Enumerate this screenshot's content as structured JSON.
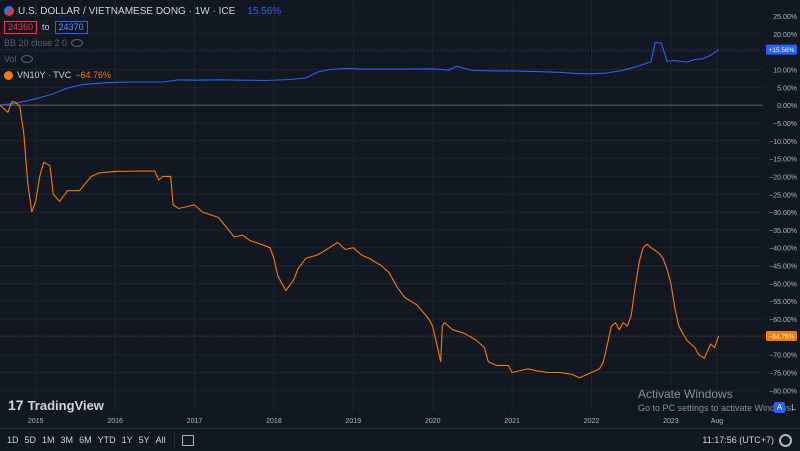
{
  "legend": {
    "title": "U.S. DOLLAR / VIETNAMESE DONG · 1W · ICE",
    "change": "15.56%",
    "low": "24360",
    "to": "to",
    "high": "24370",
    "bb": "BB 20 close 2 0",
    "vol": "Vol",
    "series2_name": "VN10Y · TVC",
    "series2_change": "−64.76%"
  },
  "colors": {
    "usdvnd": "#2962ff",
    "vn10y": "#f57c00",
    "background": "#131722",
    "grid": "#1e222d",
    "zero_line": "#787b86",
    "axis_text": "#b2b5be"
  },
  "chart_data": {
    "type": "line",
    "xlabel": "",
    "ylabel": "",
    "ylim": [
      -82,
      27
    ],
    "x_ticks": [
      "2015",
      "2016",
      "2017",
      "2018",
      "2019",
      "2020",
      "2021",
      "2022",
      "2023",
      "Aug"
    ],
    "x_tick_years": [
      2015.0,
      2016.0,
      2017.0,
      2018.0,
      2019.0,
      2020.0,
      2021.0,
      2022.0,
      2023.0,
      2023.58
    ],
    "y_ticks": [
      25,
      20,
      15,
      10,
      5,
      0,
      -5,
      -10,
      -15,
      -20,
      -25,
      -30,
      -35,
      -40,
      -45,
      -50,
      -55,
      -60,
      -65,
      -70,
      -75,
      -80
    ],
    "y_tick_labels": [
      "25.00%",
      "20.00%",
      "15.00%",
      "10.00%",
      "5.00%",
      "0.00%",
      "−5.00%",
      "−10.00%",
      "−15.00%",
      "−20.00%",
      "−25.00%",
      "−30.00%",
      "−35.00%",
      "−40.00%",
      "−45.00%",
      "−50.00%",
      "−55.00%",
      "−60.00%",
      "−65.00%",
      "−70.00%",
      "−75.00%",
      "−80.00%"
    ],
    "series": [
      {
        "name": "U.S. DOLLAR / VIETNAMESE DONG",
        "color": "#2962ff",
        "last_label": "+15.56%",
        "last_value": 15.56,
        "points": [
          [
            2014.55,
            0
          ],
          [
            2014.75,
            0.5
          ],
          [
            2015.0,
            1.8
          ],
          [
            2015.2,
            3.0
          ],
          [
            2015.4,
            4.8
          ],
          [
            2015.6,
            5.8
          ],
          [
            2015.9,
            6.3
          ],
          [
            2016.2,
            6.5
          ],
          [
            2016.6,
            6.5
          ],
          [
            2016.8,
            7.1
          ],
          [
            2017.0,
            7.0
          ],
          [
            2017.3,
            7.1
          ],
          [
            2017.6,
            7.0
          ],
          [
            2017.9,
            6.9
          ],
          [
            2018.2,
            7.2
          ],
          [
            2018.4,
            7.6
          ],
          [
            2018.55,
            9.3
          ],
          [
            2018.7,
            10.0
          ],
          [
            2018.9,
            10.3
          ],
          [
            2019.1,
            10.1
          ],
          [
            2019.4,
            10.1
          ],
          [
            2019.7,
            10.1
          ],
          [
            2020.0,
            10.2
          ],
          [
            2020.2,
            9.8
          ],
          [
            2020.3,
            10.9
          ],
          [
            2020.5,
            9.7
          ],
          [
            2020.8,
            9.6
          ],
          [
            2021.0,
            9.6
          ],
          [
            2021.3,
            9.4
          ],
          [
            2021.6,
            9.2
          ],
          [
            2021.8,
            8.9
          ],
          [
            2022.0,
            8.8
          ],
          [
            2022.2,
            9.0
          ],
          [
            2022.4,
            9.8
          ],
          [
            2022.6,
            11.0
          ],
          [
            2022.75,
            12.2
          ],
          [
            2022.8,
            17.5
          ],
          [
            2022.88,
            17.4
          ],
          [
            2022.95,
            12.3
          ],
          [
            2023.05,
            12.5
          ],
          [
            2023.2,
            12.1
          ],
          [
            2023.3,
            12.8
          ],
          [
            2023.4,
            13.0
          ],
          [
            2023.5,
            14.0
          ],
          [
            2023.6,
            15.56
          ]
        ]
      },
      {
        "name": "VN10Y · TVC",
        "color": "#f57c00",
        "last_label": "−64.76%",
        "last_value": -64.76,
        "points": [
          [
            2014.55,
            0
          ],
          [
            2014.65,
            -2
          ],
          [
            2014.7,
            1
          ],
          [
            2014.75,
            0.8
          ],
          [
            2014.8,
            -0.5
          ],
          [
            2014.85,
            -8
          ],
          [
            2014.9,
            -22
          ],
          [
            2014.95,
            -30
          ],
          [
            2015.0,
            -27
          ],
          [
            2015.05,
            -20
          ],
          [
            2015.1,
            -16
          ],
          [
            2015.18,
            -17
          ],
          [
            2015.22,
            -25
          ],
          [
            2015.3,
            -27
          ],
          [
            2015.4,
            -24
          ],
          [
            2015.55,
            -24
          ],
          [
            2015.7,
            -20
          ],
          [
            2015.8,
            -19
          ],
          [
            2016.0,
            -18.6
          ],
          [
            2016.3,
            -18.5
          ],
          [
            2016.5,
            -18.5
          ],
          [
            2016.55,
            -21
          ],
          [
            2016.6,
            -20
          ],
          [
            2016.7,
            -20
          ],
          [
            2016.73,
            -28
          ],
          [
            2016.8,
            -29
          ],
          [
            2017.0,
            -28
          ],
          [
            2017.1,
            -30
          ],
          [
            2017.3,
            -31.5
          ],
          [
            2017.5,
            -37
          ],
          [
            2017.6,
            -36.5
          ],
          [
            2017.7,
            -38
          ],
          [
            2017.8,
            -38.7
          ],
          [
            2017.95,
            -40
          ],
          [
            2018.0,
            -43
          ],
          [
            2018.05,
            -48
          ],
          [
            2018.1,
            -50
          ],
          [
            2018.15,
            -52
          ],
          [
            2018.25,
            -49
          ],
          [
            2018.3,
            -46
          ],
          [
            2018.4,
            -43
          ],
          [
            2018.55,
            -42
          ],
          [
            2018.7,
            -40
          ],
          [
            2018.8,
            -38.5
          ],
          [
            2018.9,
            -40.5
          ],
          [
            2019.0,
            -40
          ],
          [
            2019.1,
            -42
          ],
          [
            2019.2,
            -43
          ],
          [
            2019.35,
            -45
          ],
          [
            2019.45,
            -47
          ],
          [
            2019.55,
            -51
          ],
          [
            2019.65,
            -54
          ],
          [
            2019.8,
            -56
          ],
          [
            2019.95,
            -60
          ],
          [
            2020.0,
            -62
          ],
          [
            2020.1,
            -72
          ],
          [
            2020.12,
            -62
          ],
          [
            2020.15,
            -61
          ],
          [
            2020.25,
            -63
          ],
          [
            2020.4,
            -64
          ],
          [
            2020.55,
            -66
          ],
          [
            2020.65,
            -68
          ],
          [
            2020.7,
            -72
          ],
          [
            2020.8,
            -73
          ],
          [
            2020.95,
            -73
          ],
          [
            2021.0,
            -75
          ],
          [
            2021.2,
            -74
          ],
          [
            2021.3,
            -74.5
          ],
          [
            2021.45,
            -75
          ],
          [
            2021.6,
            -75
          ],
          [
            2021.75,
            -75.5
          ],
          [
            2021.85,
            -76.5
          ],
          [
            2021.95,
            -75.5
          ],
          [
            2022.0,
            -75
          ],
          [
            2022.1,
            -74
          ],
          [
            2022.15,
            -72
          ],
          [
            2022.2,
            -67
          ],
          [
            2022.25,
            -62
          ],
          [
            2022.3,
            -61
          ],
          [
            2022.35,
            -63
          ],
          [
            2022.4,
            -61
          ],
          [
            2022.45,
            -62
          ],
          [
            2022.5,
            -59
          ],
          [
            2022.55,
            -51
          ],
          [
            2022.6,
            -44
          ],
          [
            2022.65,
            -40
          ],
          [
            2022.7,
            -39
          ],
          [
            2022.75,
            -40
          ],
          [
            2022.85,
            -41.5
          ],
          [
            2022.9,
            -43
          ],
          [
            2022.95,
            -46
          ],
          [
            2023.0,
            -50
          ],
          [
            2023.05,
            -57
          ],
          [
            2023.1,
            -62
          ],
          [
            2023.15,
            -64
          ],
          [
            2023.2,
            -66
          ],
          [
            2023.3,
            -68
          ],
          [
            2023.35,
            -70
          ],
          [
            2023.42,
            -71
          ],
          [
            2023.5,
            -67
          ],
          [
            2023.55,
            -68
          ],
          [
            2023.6,
            -64.76
          ]
        ]
      }
    ]
  },
  "tv": {
    "brand": "TradingView"
  },
  "watermark": {
    "title": "Activate Windows",
    "subtitle": "Go to PC settings to activate Windows."
  },
  "scale_buttons": {
    "auto": "A",
    "log": "L"
  },
  "bottom": {
    "timeframes": [
      "1D",
      "5D",
      "1M",
      "3M",
      "6M",
      "YTD",
      "1Y",
      "5Y",
      "All"
    ],
    "clock": "11:17:56 (UTC+7)"
  }
}
